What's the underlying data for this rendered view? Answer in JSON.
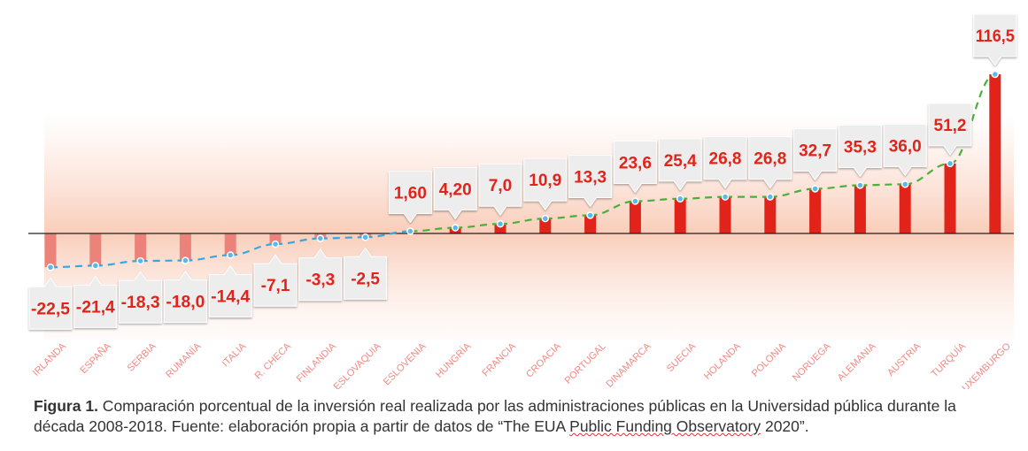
{
  "chart_data": {
    "type": "bar",
    "title": "",
    "xlabel": "",
    "ylabel": "",
    "categories": [
      "IRLANDA",
      "ESPAÑA",
      "SERBIA",
      "RUMANÍA",
      "ITALIA",
      "R. CHECA",
      "FINLANDIA",
      "ESLOVAQUIA",
      "ESLOVENIA",
      "HUNGRÍA",
      "FRANCIA",
      "CROACIA",
      "PORTUGAL",
      "DINAMARCA",
      "SUECIA",
      "HOLANDA",
      "POLONIA",
      "NORUEGA",
      "ALEMANIA",
      "AUSTRIA",
      "TURQUÍA",
      "LUXEMBURGO"
    ],
    "values": [
      -22.5,
      -21.4,
      -18.3,
      -18.0,
      -14.4,
      -7.1,
      -3.3,
      -2.5,
      1.6,
      4.2,
      7.0,
      10.9,
      13.3,
      23.6,
      25.4,
      26.8,
      26.8,
      32.7,
      35.3,
      36.0,
      51.2,
      116.5
    ],
    "labels": [
      "-22,5",
      "-21,4",
      "-18,3",
      "-18,0",
      "-14,4",
      "-7,1",
      "-3,3",
      "-2,5",
      "1,60",
      "4,20",
      "7,0",
      "10,9",
      "13,3",
      "23,6",
      "25,4",
      "26,8",
      "26,8",
      "32,7",
      "35,3",
      "36,0",
      "51,2",
      "116,5"
    ],
    "ylim": [
      -30,
      120
    ],
    "grid": false,
    "colors": {
      "positive_bar": "#e2231a",
      "negative_bar": "#ec837b",
      "label_text": "#e2231a",
      "trend_negative": "#3aa6e0",
      "trend_positive": "#4caf3a",
      "category_text": "#f08a84"
    }
  },
  "caption": {
    "prefix": "Figura 1.",
    "text_a": " Comparación porcentual de la inversión real realizada por las administraciones públicas en la Universidad pública durante la década 2008-2018. Fuente: elaboración propia a partir de datos de “The EUA ",
    "text_underlined": "Public Funding Observatory",
    "text_b": " 2020”."
  }
}
